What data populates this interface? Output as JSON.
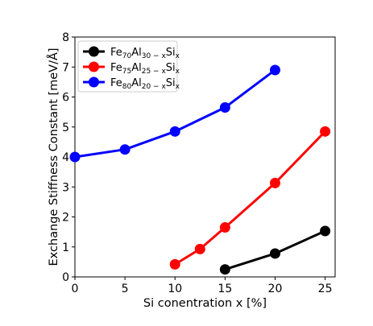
{
  "chart_data": {
    "type": "line",
    "title": "",
    "xlabel": "Si conentration x [%]",
    "ylabel": "Exchange Stiffness Constant [meV/Å]",
    "xlim": [
      0,
      26
    ],
    "ylim": [
      0,
      8
    ],
    "xticks": [
      0,
      5,
      10,
      15,
      20,
      25
    ],
    "yticks": [
      0,
      1,
      2,
      3,
      4,
      5,
      6,
      7,
      8
    ],
    "grid": false,
    "legend_position": "top-left",
    "series": [
      {
        "name": "Fe70Al30−xSix",
        "label_parts": {
          "a": "Fe",
          "a_sub": "70",
          "b": "Al",
          "b_sub": "30 − x",
          "c": "Si",
          "c_sub": "x"
        },
        "color": "#000000",
        "x": [
          15,
          20,
          25
        ],
        "y": [
          0.25,
          0.78,
          1.53
        ]
      },
      {
        "name": "Fe75Al25−xSix",
        "label_parts": {
          "a": "Fe",
          "a_sub": "75",
          "b": "Al",
          "b_sub": "25 − x",
          "c": "Si",
          "c_sub": "x"
        },
        "color": "#ff0000",
        "x": [
          10,
          12.5,
          15,
          20,
          25
        ],
        "y": [
          0.42,
          0.93,
          1.65,
          3.13,
          4.85
        ]
      },
      {
        "name": "Fe80Al20−xSix",
        "label_parts": {
          "a": "Fe",
          "a_sub": "80",
          "b": "Al",
          "b_sub": "20 − x",
          "c": "Si",
          "c_sub": "x"
        },
        "color": "#0000ff",
        "x": [
          0,
          5,
          10,
          15,
          20
        ],
        "y": [
          4.0,
          4.25,
          4.85,
          5.65,
          6.9
        ]
      }
    ]
  }
}
